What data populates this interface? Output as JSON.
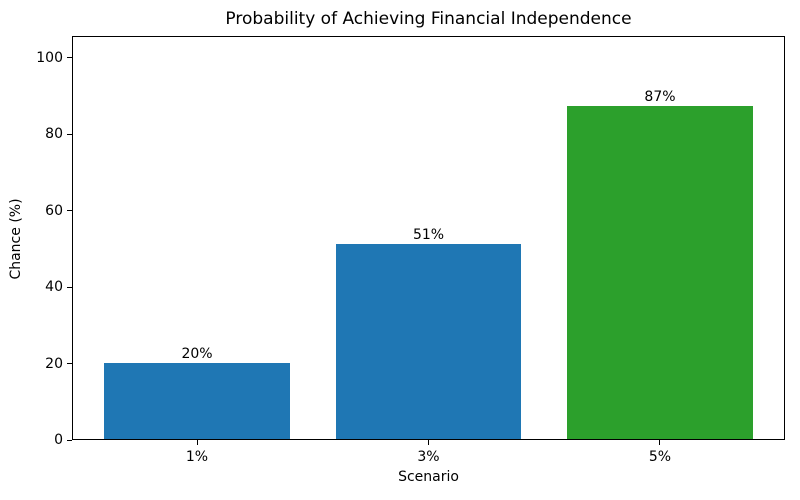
{
  "chart_data": {
    "type": "bar",
    "title": "Probability of Achieving Financial Independence",
    "xlabel": "Scenario",
    "ylabel": "Chance (%)",
    "categories": [
      "1%",
      "3%",
      "5%"
    ],
    "values": [
      20,
      51,
      87
    ],
    "bar_value_labels": [
      "20%",
      "51%",
      "87%"
    ],
    "bar_colors": [
      "#1f77b4",
      "#1f77b4",
      "#2ca02c"
    ],
    "yticks": [
      0,
      20,
      40,
      60,
      80,
      100
    ],
    "ylim": [
      0,
      105.7
    ],
    "grid": false,
    "legend_position": "none",
    "text_color": "#000000",
    "background_color": "#ffffff"
  }
}
